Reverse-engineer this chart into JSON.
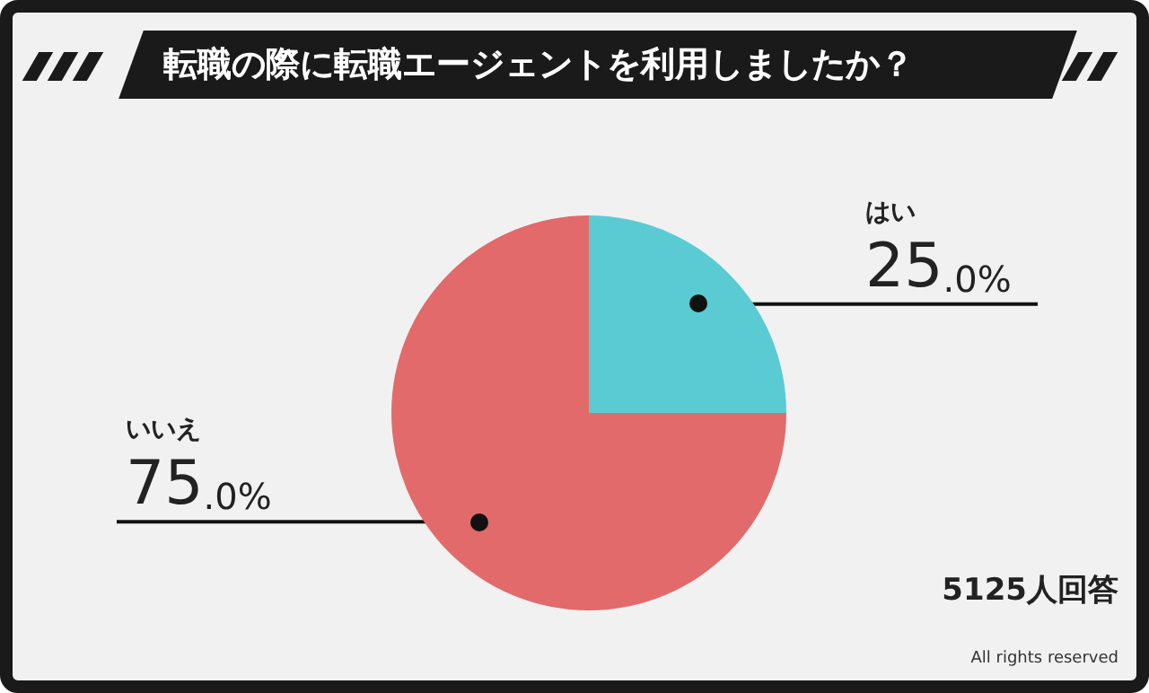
{
  "chart_data": {
    "type": "pie",
    "title": "転職の際に転職エージェントを利用しましたか？",
    "categories": [
      "はい",
      "いいえ"
    ],
    "values": [
      25,
      75
    ],
    "colors": [
      "#5bcbd3",
      "#e26a6a"
    ],
    "value_labels": [
      "25.0%",
      "75.0%"
    ],
    "legend": false,
    "annotations": [
      "5125人回答",
      "All rights reserved"
    ]
  }
}
